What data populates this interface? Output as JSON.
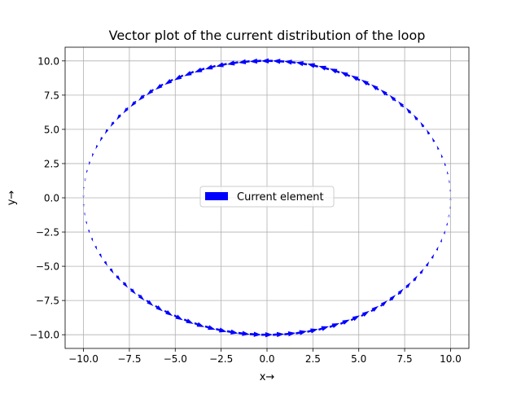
{
  "chart_data": {
    "type": "quiver",
    "title": "Vector plot of the current distribution of the loop",
    "xlabel": "x→",
    "ylabel": "y→",
    "xlim": [
      -11.0,
      11.0
    ],
    "ylim": [
      -11.0,
      11.0
    ],
    "x_ticks": [
      -10.0,
      -7.5,
      -5.0,
      -2.5,
      0.0,
      2.5,
      5.0,
      7.5,
      10.0
    ],
    "y_ticks": [
      -10.0,
      -7.5,
      -5.0,
      -2.5,
      0.0,
      2.5,
      5.0,
      7.5,
      10.0
    ],
    "x_tick_labels": [
      "−10.0",
      "−7.5",
      "−5.0",
      "−2.5",
      "0.0",
      "2.5",
      "5.0",
      "7.5",
      "10.0"
    ],
    "y_tick_labels": [
      "−10.0",
      "−7.5",
      "−5.0",
      "−2.5",
      "0.0",
      "2.5",
      "5.0",
      "7.5",
      "10.0"
    ],
    "grid": true,
    "legend": {
      "entries": [
        "Current element"
      ],
      "location": "center"
    },
    "series": [
      {
        "name": "Current element",
        "color": "#0000ff",
        "loop_center": [
          0,
          0
        ],
        "loop_radius": 10.0,
        "num_vectors": 100,
        "direction": "counterclockwise"
      }
    ]
  }
}
